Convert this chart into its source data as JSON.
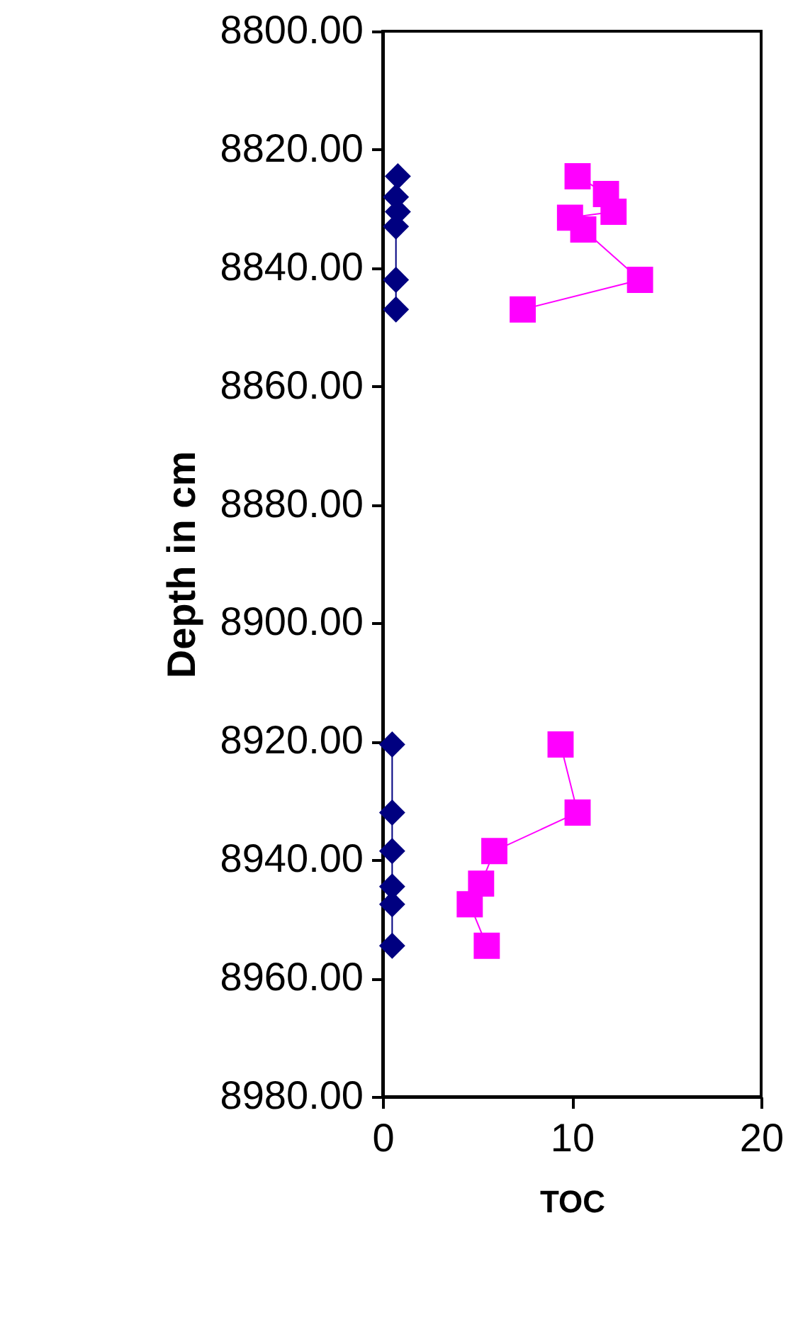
{
  "chart_data": {
    "type": "line",
    "xlabel": "TOC",
    "ylabel": "Depth in cm",
    "xlim": [
      0,
      20
    ],
    "xticks": [
      0,
      10,
      20
    ],
    "ylim": [
      8980,
      8800
    ],
    "yticks": [
      {
        "value": 8800,
        "label": "8800.00"
      },
      {
        "value": 8820,
        "label": "8820.00"
      },
      {
        "value": 8840,
        "label": "8840.00"
      },
      {
        "value": 8860,
        "label": "8860.00"
      },
      {
        "value": 8880,
        "label": "8880.00"
      },
      {
        "value": 8900,
        "label": "8900.00"
      },
      {
        "value": 8920,
        "label": "8920.00"
      },
      {
        "value": 8940,
        "label": "8940.00"
      },
      {
        "value": 8960,
        "label": "8960.00"
      },
      {
        "value": 8980,
        "label": "8980.00"
      }
    ],
    "grid": false,
    "series": [
      {
        "color": "#000080",
        "marker": "diamond",
        "x": [
          0.8,
          0.7,
          0.8,
          0.7,
          0.7,
          0.7
        ],
        "values": [
          8824.5,
          8828,
          8830.5,
          8833,
          8842,
          8847
        ]
      },
      {
        "color": "#000080",
        "marker": "diamond",
        "x": [
          0.5,
          0.5,
          0.5,
          0.5,
          0.5,
          0.5
        ],
        "values": [
          8920.5,
          8932,
          8938.5,
          8944.5,
          8947.5,
          8954.5
        ]
      },
      {
        "color": "#ff00ff",
        "marker": "square",
        "x": [
          10.3,
          11.8,
          12.2,
          9.9,
          10.6,
          13.6,
          7.4
        ],
        "values": [
          8824.5,
          8827.5,
          8830.5,
          8831.5,
          8833.5,
          8842,
          8847
        ]
      },
      {
        "color": "#ff00ff",
        "marker": "square",
        "x": [
          9.4,
          10.3,
          5.9,
          5.2,
          4.6,
          5.5
        ],
        "values": [
          8920.5,
          8932,
          8938.5,
          8944,
          8947.5,
          8954.5
        ]
      }
    ]
  }
}
